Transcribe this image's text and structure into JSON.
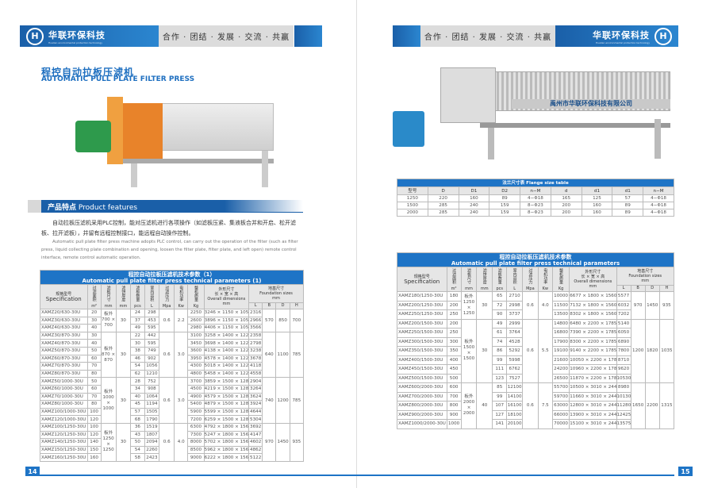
{
  "brand": {
    "name_cn": "华联环保科技",
    "name_en": "Hualian environmental protection technology",
    "slogan": "合作 · 团结 · 发展 · 交流 · 共赢"
  },
  "left": {
    "title_cn": "程控自动拉板压滤机",
    "title_en": "AUTOMATIC PULL PLATE FILTER PRESS",
    "features_title_cn": "产品特点",
    "features_title_en": "Product features",
    "features_cn": "自动拉板压滤机采用PLC控制，能对压滤机进行各项操作（如滤板压紧、集液板合并和开启、松开滤板、拉开滤板），并留有远程控制接口，能远程自动操作控制。",
    "features_en": "Automatic pull plate filter press machine adopts PLC control, can carry out the operation of the filter (such as filter press, liquid collecting plate combination and opening, loosen the filter plate, filter plate, and left open) remote control interface, remote control automatic operation.",
    "table_title_cn": "程控自动拉板压滤机技术参数（1）",
    "table_title_en": "Automatic pull plate filter press technical parameters (1)",
    "page_number": "14"
  },
  "right": {
    "machine_label": "禹州市华联环保科技有限公司",
    "flange_title": "法兰尺寸表  Flange size table",
    "flange_headers": [
      "型号",
      "D",
      "D1",
      "D2",
      "n−M",
      "d",
      "d1",
      "d1",
      "n−M"
    ],
    "flange_rows": [
      [
        "1250",
        "220",
        "160",
        "89",
        "4−Φ18",
        "165",
        "125",
        "57",
        "4−Φ18"
      ],
      [
        "1500",
        "285",
        "240",
        "159",
        "8−Φ23",
        "200",
        "160",
        "89",
        "4−Φ18"
      ],
      [
        "2000",
        "285",
        "240",
        "159",
        "8−Φ23",
        "200",
        "160",
        "89",
        "4−Φ18"
      ]
    ],
    "table_title_cn": "程控自动拉板压滤机技术参数",
    "table_title_en": "Automatic pull plate filter press technical parameters",
    "page_number": "15"
  },
  "headers": {
    "spec_cn": "规格型号",
    "spec_en": "Specification",
    "area": "过滤面积",
    "area_u": "m²",
    "plate": "滤板尺寸",
    "plate_u": "mm",
    "cake": "滤饼厚度",
    "cake_u": "mm",
    "count": "滤板数量",
    "count_u": "pcs",
    "vol": "室内容积",
    "vol_u": "L",
    "press": "过滤压力",
    "press_u": "Mpa",
    "power": "电机功率",
    "power_u": "Kw",
    "weight": "整机质量",
    "weight_u": "Kg",
    "dims_cn": "外形尺寸",
    "dims_cn2": "长 × 宽 × 高",
    "dims_en": "Overall dimensions",
    "dims_u": "mm",
    "found_cn": "地基尺寸",
    "found_en": "Foundation sizes",
    "found_u": "mm",
    "L": "L",
    "B": "B",
    "D": "D",
    "H": "H"
  },
  "left_groups": [
    {
      "plate": "板外 700 × 700",
      "cake": "30",
      "press": "0.6",
      "power": "2.2",
      "B": "570",
      "D": "850",
      "H": "700",
      "rows": [
        [
          "XAMZ20/630-30U",
          "20",
          "24",
          "298",
          "2250",
          "3246 × 1150 × 1050",
          "2316"
        ],
        [
          "XAMZ30/630-30U",
          "30",
          "37",
          "453",
          "2600",
          "3896 × 1150 × 1050",
          "2966"
        ],
        [
          "XAMZ40/630-30U",
          "40",
          "49",
          "595",
          "2980",
          "4406 × 1150 × 1050",
          "3566"
        ]
      ]
    },
    {
      "plate": "板外 870 × 870",
      "cake": "30",
      "press": "0.6",
      "power": "3.0",
      "B": "640",
      "D": "1100",
      "H": "785",
      "rows": [
        [
          "XAMZ30/870-30U",
          "30",
          "22",
          "442",
          "3100",
          "3258 × 1400 × 1220",
          "2358"
        ],
        [
          "XAMZ40/870-30U",
          "40",
          "30",
          "595",
          "3450",
          "3698 × 1400 × 1220",
          "2798"
        ],
        [
          "XAMZ50/870-30U",
          "50",
          "38",
          "749",
          "3600",
          "4138 × 1400 × 1220",
          "3238"
        ],
        [
          "XAMZ60/870-30U",
          "60",
          "46",
          "902",
          "3950",
          "4578 × 1400 × 1220",
          "3678"
        ],
        [
          "XAMZ70/870-30U",
          "70",
          "54",
          "1056",
          "4300",
          "5018 × 1400 × 1220",
          "4118"
        ],
        [
          "XAMZ80/870-30U",
          "80",
          "62",
          "1210",
          "4800",
          "5458 × 1400 × 1220",
          "4558"
        ]
      ]
    },
    {
      "plate": "板外 1000 × 1000",
      "cake": "30",
      "press": "0.6",
      "power": "3.0",
      "B": "740",
      "D": "1200",
      "H": "785",
      "rows": [
        [
          "XAMZ50/1000-30U",
          "50",
          "28",
          "752",
          "3700",
          "3859 × 1500 × 1285",
          "2904"
        ],
        [
          "XAMZ60/1000-30U",
          "60",
          "34",
          "908",
          "4500",
          "4219 × 1500 × 1285",
          "3264"
        ],
        [
          "XAMZ70/1000-30U",
          "70",
          "40",
          "1064",
          "4900",
          "4579 × 1500 × 1285",
          "3624"
        ],
        [
          "XAMZ80/1000-30U",
          "80",
          "45",
          "1194",
          "5400",
          "4879 × 1500 × 1285",
          "3924"
        ],
        [
          "XAMZ100/1000-30U",
          "100",
          "57",
          "1505",
          "5900",
          "5599 × 1500 × 1285",
          "4644"
        ],
        [
          "XAMZ120/1000-30U",
          "120",
          "68",
          "1790",
          "7200",
          "6259 × 1500 × 1285",
          "5304"
        ]
      ]
    },
    {
      "plate": "板外 1250 × 1250",
      "cake": "30",
      "press": "0.6",
      "power": "4.0",
      "B": "970",
      "D": "1450",
      "H": "935",
      "rows": [
        [
          "XAMZ100/1250-30U",
          "100",
          "36",
          "1519",
          "6300",
          "4792 × 1800 × 1560",
          "3692"
        ],
        [
          "XAMZ120/1250-30U",
          "120",
          "43",
          "1807",
          "7300",
          "5247 × 1800 × 1560",
          "4147"
        ],
        [
          "XAMZ140/1250-30U",
          "140",
          "50",
          "2094",
          "8000",
          "5702 × 1800 × 1560",
          "4602"
        ],
        [
          "XAMZ150/1250-30U",
          "150",
          "54",
          "2260",
          "8500",
          "5962 × 1800 × 1560",
          "4862"
        ],
        [
          "XAMZ160/1250-30U",
          "160",
          "58",
          "2423",
          "9000",
          "6222 × 1800 × 1560",
          "5122"
        ]
      ]
    }
  ],
  "right_groups": [
    {
      "plate": "板外 1250 × 1250",
      "cake": "30",
      "press": "0.6",
      "power": "4.0",
      "B": "970",
      "D": "1450",
      "H": "935",
      "rows": [
        [
          "XAMZ180/1250-30U",
          "180",
          "65",
          "2710",
          "10000",
          "6677 × 1800 × 1560",
          "5577"
        ],
        [
          "XAMZ200/1250-30U",
          "200",
          "72",
          "2998",
          "11500",
          "7132 × 1800 × 1560",
          "6032"
        ],
        [
          "XAMZ250/1250-30U",
          "250",
          "90",
          "3737",
          "13500",
          "8302 × 1800 × 1560",
          "7202"
        ]
      ]
    },
    {
      "plate": "板外 1500 × 1500",
      "cake": "30",
      "press": "0.6",
      "power": "5.5",
      "B": "1200",
      "D": "1820",
      "H": "1035",
      "rows": [
        [
          "XAMZ200/1500-30U",
          "200",
          "49",
          "2999",
          "14800",
          "6480 × 2200 × 1785",
          "5140"
        ],
        [
          "XAMZ250/1500-30U",
          "250",
          "61",
          "3764",
          "16800",
          "7390 × 2200 × 1785",
          "6050"
        ],
        [
          "XAMZ300/1500-30U",
          "300",
          "74",
          "4528",
          "17900",
          "8300 × 2200 × 1785",
          "6890"
        ],
        [
          "XAMZ350/1500-30U",
          "350",
          "86",
          "5292",
          "19100",
          "9140 × 2200 × 1785",
          "7800"
        ],
        [
          "XAMZ400/1500-30U",
          "400",
          "99",
          "5998",
          "21600",
          "10050 × 2200 × 1785",
          "8710"
        ],
        [
          "XAMZ450/1500-30U",
          "450",
          "111",
          "6762",
          "24200",
          "10960 × 2200 × 1785",
          "9620"
        ],
        [
          "XAMZ500/1500-30U",
          "500",
          "123",
          "7527",
          "26500",
          "11870 × 2200 × 1785",
          "10530"
        ]
      ]
    },
    {
      "plate": "板外 2000 × 2000",
      "cake": "40",
      "press": "0.6",
      "power": "7.5",
      "B": "1650",
      "D": "2200",
      "H": "1315",
      "rows": [
        [
          "XAMZ600/2000-30U",
          "600",
          "85",
          "12100",
          "55700",
          "10500 × 3010 × 2445",
          "8980"
        ],
        [
          "XAMZ700/2000-30U",
          "700",
          "99",
          "14100",
          "59700",
          "11660 × 3010 × 2445",
          "10130"
        ],
        [
          "XAMZ800/2000-30U",
          "800",
          "107",
          "16100",
          "63000",
          "12800 × 3010 × 2445",
          "11280"
        ],
        [
          "XAMZ900/2000-30U",
          "900",
          "127",
          "18100",
          "66000",
          "13900 × 3010 × 2445",
          "12425"
        ],
        [
          "XAMZ1000/2000-30U",
          "1000",
          "141",
          "20100",
          "70000",
          "15100 × 3010 × 2445",
          "13575"
        ]
      ]
    }
  ],
  "colors": {
    "accent": "#1e74c6",
    "band_gray": "#dcdcdc",
    "machine_orange": "#e8832a",
    "machine_frame": "#c9c9c9"
  }
}
